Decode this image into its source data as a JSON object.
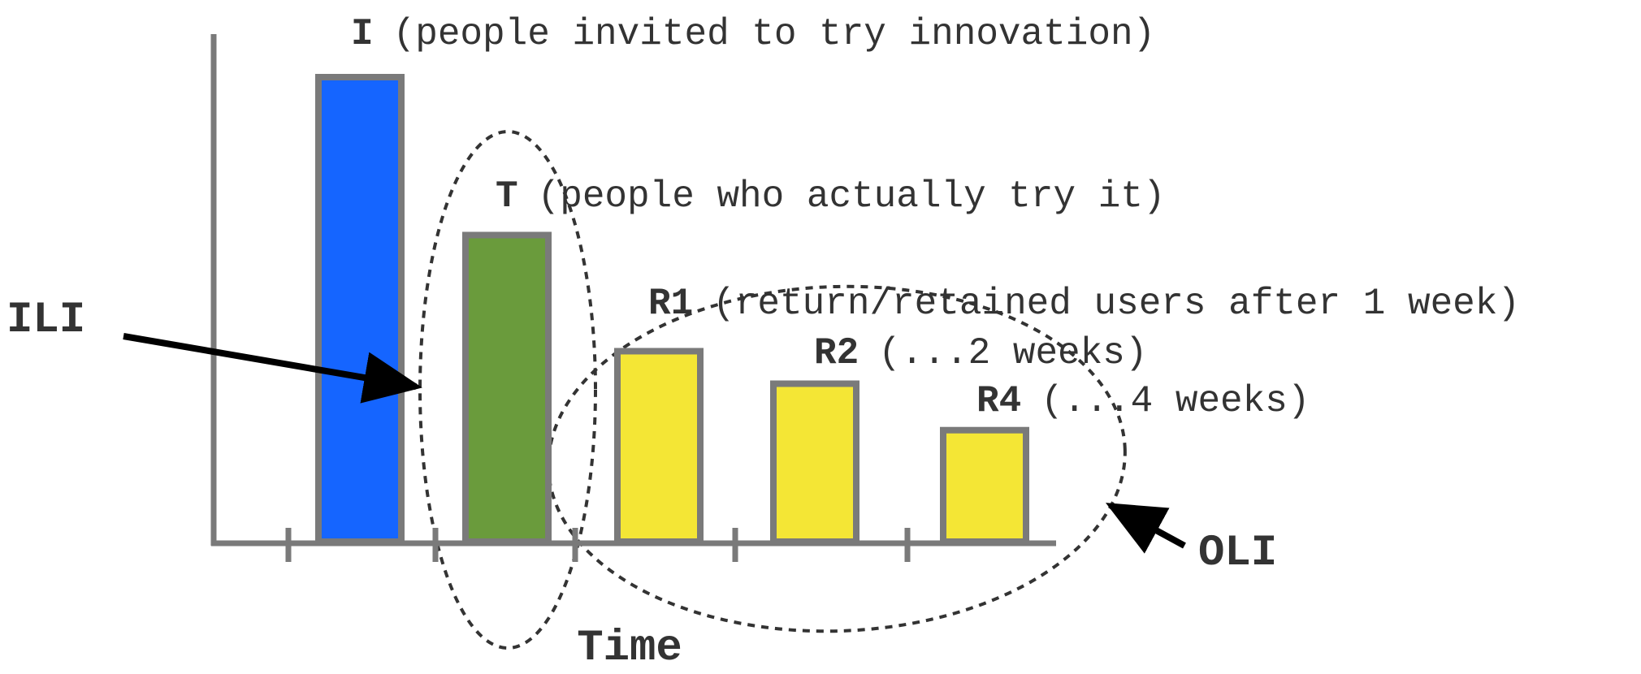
{
  "chart_data": {
    "type": "bar",
    "title": "",
    "xlabel": "Time",
    "ylabel": "",
    "ylim": [
      0,
      100
    ],
    "grid": false,
    "legend": "none",
    "categories": [
      "I",
      "T",
      "R1",
      "R2",
      "R4"
    ],
    "values": [
      100,
      66,
      41,
      34,
      24
    ],
    "bar_labels": [
      {
        "key": "I",
        "text": "(people invited to try innovation)"
      },
      {
        "key": "T",
        "text": "(people who actually try it)"
      },
      {
        "key": "R1",
        "text": "(return/retained users after 1 week)"
      },
      {
        "key": "R2",
        "text": "(...2 weeks)"
      },
      {
        "key": "R4",
        "text": "(...4 weeks)"
      }
    ],
    "bar_colors": [
      "#1565ff",
      "#6a9b3c",
      "#f4e635",
      "#f4e635",
      "#f4e635"
    ],
    "bar_border_color": "#7a7a7a",
    "axis_color": "#7a7a7a",
    "annotations": [
      {
        "text": "ILI",
        "points_to": "T"
      },
      {
        "text": "OLI",
        "points_to": "R1, R2, R4"
      }
    ]
  }
}
